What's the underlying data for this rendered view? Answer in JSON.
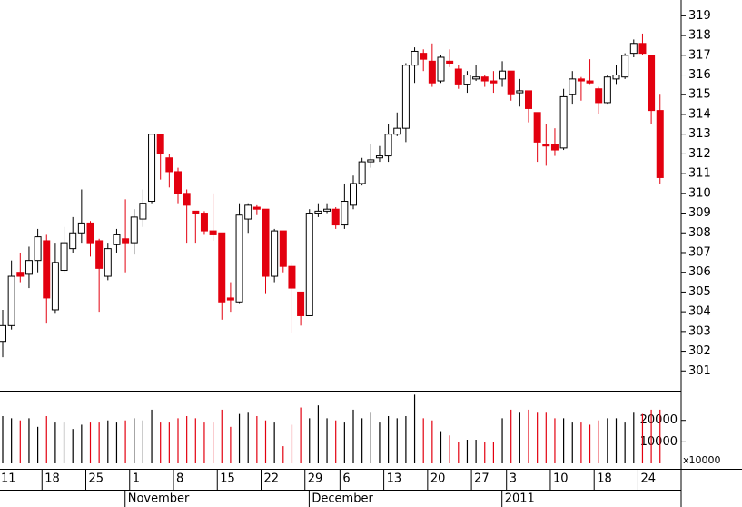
{
  "chart_data": {
    "type": "candlestick",
    "categories": [
      "11",
      null,
      null,
      null,
      null,
      "18",
      null,
      null,
      null,
      null,
      "25",
      null,
      null,
      null,
      null,
      "1",
      null,
      null,
      null,
      null,
      "8",
      null,
      null,
      null,
      null,
      "15",
      null,
      null,
      null,
      null,
      "22",
      null,
      null,
      null,
      null,
      "29",
      null,
      null,
      null,
      "6",
      null,
      null,
      null,
      null,
      "13",
      null,
      null,
      null,
      null,
      "20",
      null,
      null,
      null,
      null,
      "27",
      null,
      null,
      null,
      "3",
      null,
      null,
      null,
      null,
      "10",
      null,
      null,
      null,
      null,
      "18",
      null,
      null,
      null,
      null,
      "24",
      null,
      null
    ],
    "months": [
      null,
      null,
      null,
      null,
      null,
      null,
      null,
      null,
      null,
      null,
      null,
      null,
      null,
      null,
      null,
      "November",
      null,
      null,
      null,
      null,
      null,
      null,
      null,
      null,
      null,
      null,
      null,
      null,
      null,
      null,
      null,
      null,
      null,
      null,
      null,
      null,
      "December",
      null,
      null,
      null,
      null,
      null,
      null,
      null,
      null,
      null,
      null,
      null,
      null,
      null,
      null,
      null,
      null,
      null,
      null,
      null,
      null,
      null,
      "2011",
      null,
      null,
      null,
      null,
      null,
      null,
      null,
      null,
      null,
      null,
      null,
      null,
      null,
      null,
      null,
      null,
      null
    ],
    "open": [
      302.5,
      303.3,
      306.0,
      305.9,
      306.6,
      307.6,
      304.1,
      306.1,
      307.2,
      308.0,
      308.5,
      307.6,
      305.8,
      307.4,
      307.7,
      307.5,
      308.7,
      309.6,
      313.0,
      311.8,
      311.1,
      310.0,
      309.1,
      309.0,
      308.1,
      308.0,
      304.7,
      304.5,
      308.7,
      309.3,
      309.2,
      305.8,
      308.1,
      306.3,
      305.0,
      303.8,
      309.0,
      309.1,
      309.2,
      308.4,
      309.4,
      310.5,
      311.6,
      311.8,
      311.9,
      313.0,
      313.3,
      316.5,
      317.1,
      316.7,
      315.7,
      316.7,
      316.3,
      315.5,
      315.8,
      315.9,
      315.7,
      315.8,
      316.2,
      315.1,
      315.2,
      314.1,
      312.5,
      312.5,
      312.3,
      315.0,
      315.8,
      315.7,
      315.3,
      314.6,
      315.8,
      315.9,
      317.1,
      317.6,
      317.0,
      314.2
    ],
    "high": [
      304.1,
      306.6,
      307.0,
      307.3,
      308.2,
      307.9,
      307.5,
      308.3,
      308.8,
      310.2,
      308.6,
      307.7,
      307.5,
      308.2,
      309.7,
      309.2,
      310.2,
      313.0,
      313.0,
      312.0,
      311.3,
      310.2,
      309.1,
      309.1,
      310.0,
      308.0,
      305.5,
      309.5,
      309.5,
      309.4,
      309.2,
      308.2,
      308.1,
      306.5,
      305.0,
      309.2,
      309.5,
      309.5,
      309.3,
      310.5,
      310.9,
      311.8,
      312.5,
      312.4,
      313.5,
      314.1,
      316.6,
      317.4,
      317.3,
      317.6,
      317.0,
      317.3,
      316.5,
      316.2,
      316.5,
      316.0,
      316.2,
      316.7,
      316.2,
      315.8,
      315.2,
      314.1,
      313.5,
      313.3,
      315.3,
      316.2,
      315.9,
      316.8,
      315.4,
      316.0,
      316.5,
      317.1,
      317.8,
      318.1,
      317.0,
      315.0
    ],
    "low": [
      301.7,
      303.1,
      305.5,
      305.2,
      306.0,
      303.4,
      303.9,
      306.0,
      307.0,
      307.5,
      306.8,
      304.0,
      305.6,
      307.0,
      306.0,
      306.9,
      308.3,
      309.5,
      310.7,
      310.3,
      309.5,
      307.5,
      307.5,
      307.9,
      307.6,
      303.6,
      304.0,
      304.4,
      308.0,
      308.9,
      304.9,
      305.5,
      306.0,
      302.9,
      303.3,
      303.8,
      308.8,
      309.0,
      308.2,
      308.2,
      309.2,
      310.4,
      311.3,
      311.6,
      311.6,
      312.9,
      312.6,
      315.6,
      316.2,
      315.4,
      315.6,
      316.4,
      315.3,
      315.1,
      315.7,
      315.4,
      315.1,
      315.4,
      314.7,
      314.4,
      313.6,
      311.6,
      311.4,
      311.9,
      312.2,
      314.5,
      314.7,
      315.5,
      314.0,
      314.5,
      315.5,
      315.8,
      316.9,
      317.0,
      313.5,
      310.5
    ],
    "close": [
      303.3,
      305.8,
      305.8,
      306.6,
      307.8,
      304.7,
      306.5,
      307.5,
      308.0,
      308.5,
      307.5,
      306.2,
      307.2,
      307.9,
      307.5,
      308.8,
      309.5,
      313.0,
      312.0,
      311.1,
      310.0,
      309.4,
      309.0,
      308.1,
      307.9,
      304.5,
      304.6,
      308.9,
      309.4,
      309.2,
      305.8,
      308.1,
      306.3,
      305.2,
      303.8,
      309.0,
      309.1,
      309.2,
      308.4,
      309.6,
      310.5,
      311.6,
      311.7,
      311.9,
      313.0,
      313.3,
      316.5,
      317.2,
      316.8,
      315.6,
      316.9,
      316.6,
      315.5,
      316.0,
      315.9,
      315.7,
      315.6,
      316.2,
      315.0,
      315.2,
      314.3,
      312.6,
      312.4,
      312.2,
      314.9,
      315.8,
      315.7,
      315.6,
      314.6,
      315.9,
      316.0,
      317.0,
      317.6,
      317.1,
      314.2,
      310.8
    ],
    "ylim": [
      300,
      319.8
    ],
    "yticks": [
      301,
      302,
      303,
      304,
      305,
      306,
      307,
      308,
      309,
      310,
      311,
      312,
      313,
      314,
      315,
      316,
      317,
      318,
      319
    ],
    "up_color": "#ffffff",
    "down_color": "#e3000f",
    "volume": {
      "values": [
        22000,
        21000,
        20000,
        21000,
        17000,
        22000,
        19000,
        19000,
        16000,
        18000,
        19000,
        19000,
        20000,
        19000,
        20000,
        21000,
        20000,
        25000,
        19000,
        19000,
        21000,
        22000,
        21000,
        19000,
        19000,
        25000,
        17000,
        23000,
        24000,
        22000,
        20000,
        19000,
        8000,
        18000,
        26000,
        21000,
        27000,
        21000,
        20000,
        19000,
        25000,
        21000,
        24000,
        19000,
        22000,
        21000,
        22000,
        32000,
        21000,
        20000,
        15000,
        13000,
        10000,
        11000,
        11000,
        10000,
        10000,
        21000,
        25000,
        24000,
        25000,
        24000,
        24000,
        21000,
        21000,
        19000,
        19000,
        18000,
        20000,
        21000,
        21000,
        19000,
        24000,
        23000,
        25000,
        25000
      ],
      "ylim": [
        0,
        33000
      ],
      "yticks": [
        10000,
        20000
      ],
      "unit_label": "x10000"
    }
  }
}
